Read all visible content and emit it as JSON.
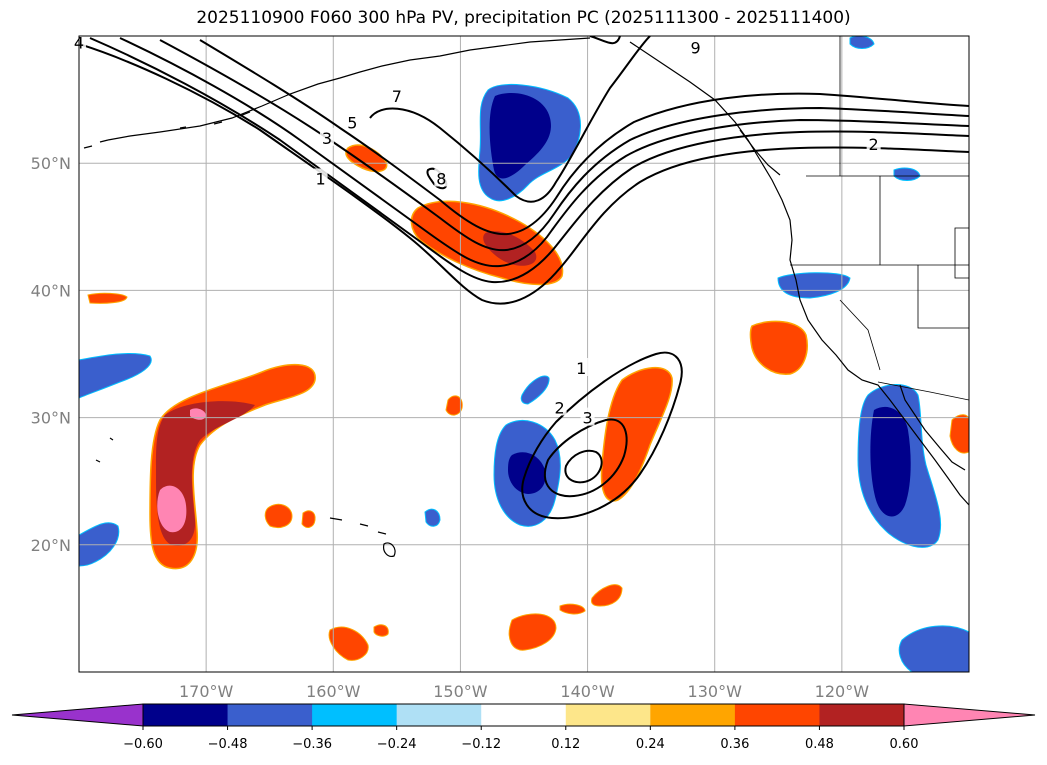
{
  "chart_data": {
    "type": "contour-map",
    "title": "2025110900 F060 300 hPa PV, precipitation PC (2025111300 - 2025111400)",
    "map": {
      "lon_range": [
        -180,
        -110
      ],
      "lat_range": [
        10,
        60
      ],
      "lon_ticks": [
        -170,
        -160,
        -150,
        -140,
        -130,
        -120
      ],
      "lon_tick_labels": [
        "170°W",
        "160°W",
        "150°W",
        "140°W",
        "130°W",
        "120°W"
      ],
      "lat_ticks": [
        20,
        30,
        40,
        50
      ],
      "lat_tick_labels": [
        "20°N",
        "30°N",
        "40°N",
        "50°N"
      ],
      "grid": true
    },
    "colorbar": {
      "levels": [
        -0.6,
        -0.48,
        -0.36,
        -0.24,
        -0.12,
        0.12,
        0.24,
        0.36,
        0.48,
        0.6
      ],
      "tick_labels": [
        "−0.60",
        "−0.48",
        "−0.36",
        "−0.24",
        "−0.12",
        "0.12",
        "0.24",
        "0.36",
        "0.48",
        "0.60"
      ],
      "colors": [
        "#9932cc",
        "#00008b",
        "#3a5fcd",
        "#00bfff",
        "#afe0f5",
        "#ffffff",
        "#fde68a",
        "#ffa500",
        "#ff4500",
        "#b22222",
        "#ff85b3"
      ],
      "extend": "both"
    },
    "pv_contour_labels": [
      {
        "label": "4",
        "lon": -180.0,
        "lat": 59.5
      },
      {
        "label": "5",
        "lon": -158.5,
        "lat": 53.2
      },
      {
        "label": "3",
        "lon": -160.5,
        "lat": 52.0
      },
      {
        "label": "1",
        "lon": -161.0,
        "lat": 48.8
      },
      {
        "label": "7",
        "lon": -155.0,
        "lat": 55.3
      },
      {
        "label": "8",
        "lon": -151.5,
        "lat": 48.8
      },
      {
        "label": "9",
        "lon": -131.5,
        "lat": 59.1
      },
      {
        "label": "2",
        "lon": -117.5,
        "lat": 51.5
      },
      {
        "label": "1",
        "lon": -140.5,
        "lat": 33.9
      },
      {
        "label": "2",
        "lon": -142.2,
        "lat": 30.8
      },
      {
        "label": "3",
        "lon": -140.0,
        "lat": 30.0
      }
    ],
    "precip_pc_regions": [
      {
        "name": "gulf-of-alaska-negative",
        "center_lon": -146,
        "center_lat": 53,
        "value_range": [
          -0.6,
          -0.36
        ]
      },
      {
        "name": "northeast-pacific-positive-band",
        "center_lon": -148,
        "center_lat": 44,
        "value_range": [
          0.36,
          0.6
        ]
      },
      {
        "name": "subtropical-west-positive",
        "center_lon": -167,
        "center_lat": 27,
        "value_range": [
          0.36,
          0.72
        ]
      },
      {
        "name": "subtropical-central-negative",
        "center_lon": -144.5,
        "center_lat": 26,
        "value_range": [
          -0.6,
          -0.36
        ]
      },
      {
        "name": "subtropical-central-positive",
        "center_lon": -138,
        "center_lat": 29,
        "value_range": [
          0.36,
          0.48
        ]
      },
      {
        "name": "baja-negative",
        "center_lon": -115.5,
        "center_lat": 25,
        "value_range": [
          -0.6,
          -0.36
        ]
      },
      {
        "name": "california-offshore-positive",
        "center_lon": -122.5,
        "center_lat": 35,
        "value_range": [
          0.36,
          0.48
        ]
      }
    ]
  }
}
